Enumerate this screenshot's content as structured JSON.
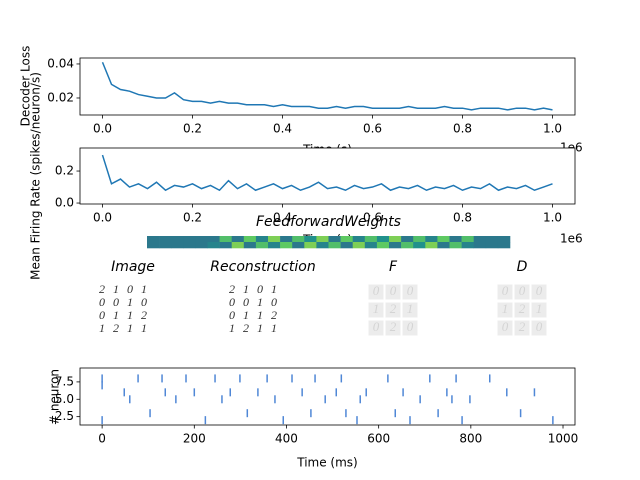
{
  "chart_data": [
    {
      "type": "line",
      "ylabel": "Decoder Loss",
      "xlabel": "Time (s)",
      "offset_label": "1e6",
      "x": [
        0,
        20000,
        40000,
        60000,
        80000,
        100000,
        120000,
        140000,
        160000,
        180000,
        200000,
        220000,
        240000,
        260000,
        280000,
        300000,
        320000,
        340000,
        360000,
        380000,
        400000,
        420000,
        440000,
        460000,
        480000,
        500000,
        520000,
        540000,
        560000,
        580000,
        600000,
        620000,
        640000,
        660000,
        680000,
        700000,
        720000,
        740000,
        760000,
        780000,
        800000,
        820000,
        840000,
        860000,
        880000,
        900000,
        920000,
        940000,
        960000,
        980000,
        1000000
      ],
      "series": [
        {
          "color": "#1f77b4",
          "values": [
            0.041,
            0.028,
            0.025,
            0.024,
            0.022,
            0.021,
            0.02,
            0.02,
            0.023,
            0.019,
            0.018,
            0.018,
            0.017,
            0.018,
            0.017,
            0.017,
            0.016,
            0.016,
            0.016,
            0.015,
            0.016,
            0.015,
            0.015,
            0.015,
            0.014,
            0.014,
            0.015,
            0.014,
            0.015,
            0.015,
            0.014,
            0.014,
            0.014,
            0.014,
            0.015,
            0.014,
            0.014,
            0.014,
            0.015,
            0.014,
            0.014,
            0.013,
            0.014,
            0.014,
            0.014,
            0.013,
            0.014,
            0.014,
            0.013,
            0.014,
            0.013
          ]
        }
      ],
      "xlim": [
        -50000,
        1050000
      ],
      "ylim": [
        0.01,
        0.0435
      ],
      "xticks": [
        {
          "value": 0,
          "label": "0.0"
        },
        {
          "value": 200000,
          "label": "0.2"
        },
        {
          "value": 400000,
          "label": "0.4"
        },
        {
          "value": 600000,
          "label": "0.6"
        },
        {
          "value": 800000,
          "label": "0.8"
        },
        {
          "value": 1000000,
          "label": "1.0"
        }
      ],
      "yticks": [
        0.02,
        0.04
      ]
    },
    {
      "type": "line",
      "ylabel": "Mean Firing Rate (spikes/neuron/s)",
      "xlabel": "Time (s)",
      "offset_label": "1e6",
      "x": [
        0,
        20000,
        40000,
        60000,
        80000,
        100000,
        120000,
        140000,
        160000,
        180000,
        200000,
        220000,
        240000,
        260000,
        280000,
        300000,
        320000,
        340000,
        360000,
        380000,
        400000,
        420000,
        440000,
        460000,
        480000,
        500000,
        520000,
        540000,
        560000,
        580000,
        600000,
        620000,
        640000,
        660000,
        680000,
        700000,
        720000,
        740000,
        760000,
        780000,
        800000,
        820000,
        840000,
        860000,
        880000,
        900000,
        920000,
        940000,
        960000,
        980000,
        1000000
      ],
      "series": [
        {
          "color": "#1f77b4",
          "values": [
            0.3,
            0.12,
            0.15,
            0.1,
            0.12,
            0.09,
            0.13,
            0.08,
            0.11,
            0.1,
            0.12,
            0.09,
            0.11,
            0.08,
            0.14,
            0.09,
            0.12,
            0.08,
            0.1,
            0.12,
            0.09,
            0.11,
            0.08,
            0.1,
            0.13,
            0.09,
            0.1,
            0.08,
            0.11,
            0.09,
            0.1,
            0.12,
            0.08,
            0.1,
            0.09,
            0.11,
            0.08,
            0.1,
            0.09,
            0.11,
            0.08,
            0.1,
            0.09,
            0.12,
            0.08,
            0.1,
            0.09,
            0.11,
            0.08,
            0.1,
            0.12
          ]
        }
      ],
      "xlim": [
        -50000,
        1050000
      ],
      "ylim": [
        -0.006,
        0.344
      ],
      "xticks": [
        {
          "value": 0,
          "label": "0.0"
        },
        {
          "value": 200000,
          "label": "0.2"
        },
        {
          "value": 400000,
          "label": "0.4"
        },
        {
          "value": 600000,
          "label": "0.6"
        },
        {
          "value": 800000,
          "label": "0.8"
        },
        {
          "value": 1000000,
          "label": "1.0"
        }
      ],
      "yticks": [
        {
          "value": 0,
          "label": "0.0"
        },
        0.2
      ]
    },
    {
      "type": "heatmap",
      "title": "FeedforwardWeights",
      "colormap": "viridis",
      "values": [
        [
          0.4,
          0.4,
          0.4,
          0.4,
          0.4,
          0.4,
          0.7,
          0.4,
          0.75,
          0.45,
          0.8,
          0.4,
          0.7,
          0.5,
          0.8,
          0.4,
          0.75,
          0.45,
          0.7,
          0.5,
          0.8,
          0.4,
          0.7,
          0.45,
          0.75,
          0.4,
          0.7,
          0.4,
          0.4,
          0.4
        ],
        [
          0.4,
          0.4,
          0.4,
          0.4,
          0.4,
          0.45,
          0.4,
          0.8,
          0.4,
          0.7,
          0.45,
          0.75,
          0.4,
          0.8,
          0.45,
          0.7,
          0.4,
          0.8,
          0.45,
          0.75,
          0.4,
          0.7,
          0.5,
          0.8,
          0.4,
          0.7,
          0.45,
          0.4,
          0.4,
          0.4
        ]
      ]
    },
    {
      "type": "images",
      "panels": [
        {
          "title": "Image",
          "rows": [
            [
              "2",
              "1",
              "0",
              "1"
            ],
            [
              "0",
              "0",
              "1",
              "0"
            ],
            [
              "0",
              "1",
              "1",
              "2"
            ],
            [
              "1",
              "2",
              "1",
              "1"
            ]
          ]
        },
        {
          "title": "Reconstruction",
          "rows": [
            [
              "2",
              "1",
              "0",
              "1"
            ],
            [
              "0",
              "0",
              "1",
              "0"
            ],
            [
              "0",
              "1",
              "1",
              "2"
            ],
            [
              "1",
              "2",
              "1",
              "1"
            ]
          ]
        },
        {
          "title": "F",
          "rows": [
            [
              "0",
              "0",
              "0"
            ],
            [
              "1",
              "2",
              "1"
            ],
            [
              "0",
              "2",
              "0"
            ]
          ]
        },
        {
          "title": "D",
          "rows": [
            [
              "0",
              "0",
              "0"
            ],
            [
              "1",
              "2",
              "1"
            ],
            [
              "0",
              "2",
              "0"
            ]
          ]
        }
      ]
    },
    {
      "type": "scatter",
      "xlabel": "Time (ms)",
      "ylabel": "# neuron",
      "color": "#4f87d6",
      "x": [
        0,
        0,
        0,
        48,
        60,
        78,
        104,
        130,
        137,
        160,
        182,
        200,
        224,
        245,
        260,
        278,
        299,
        315,
        338,
        358,
        375,
        393,
        412,
        434,
        453,
        462,
        484,
        508,
        519,
        529,
        553,
        560,
        573,
        620,
        636,
        653,
        668,
        690,
        711,
        729,
        748,
        759,
        768,
        781,
        798,
        841,
        878,
        908,
        938,
        978
      ],
      "y": [
        8,
        7,
        2,
        6,
        5,
        8,
        3,
        8,
        6,
        5,
        8,
        6,
        2,
        8,
        5,
        6,
        8,
        3,
        6,
        8,
        5,
        2,
        8,
        6,
        3,
        8,
        5,
        6,
        8,
        3,
        2,
        5,
        6,
        8,
        3,
        6,
        2,
        5,
        8,
        3,
        6,
        5,
        8,
        2,
        5,
        8,
        6,
        3,
        6,
        2
      ],
      "xlim": [
        -48,
        1026
      ],
      "ylim": [
        1.3,
        9.5
      ],
      "xticks": [
        0,
        200,
        400,
        600,
        800,
        1000
      ],
      "yticks": [
        2.5,
        {
          "value": 5,
          "label": "5.0"
        },
        7.5
      ]
    }
  ]
}
